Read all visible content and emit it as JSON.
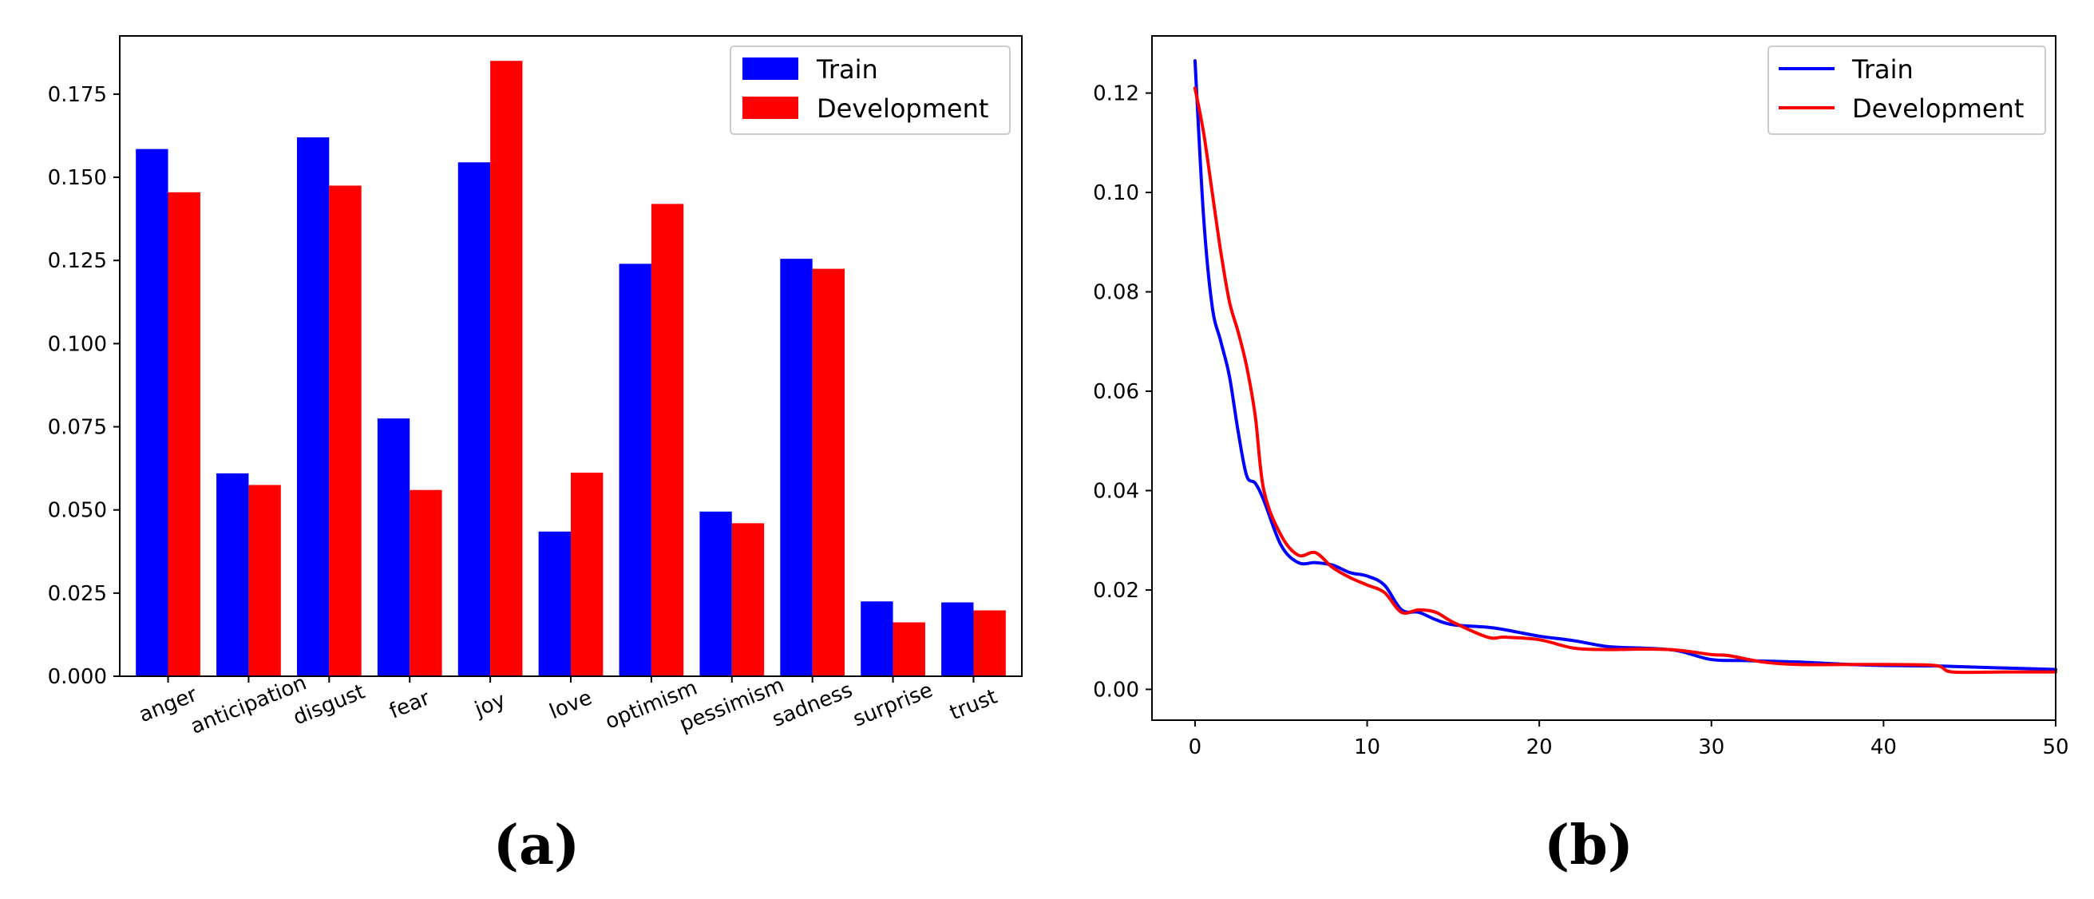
{
  "colors": {
    "train": "#0000ff",
    "development": "#ff0000"
  },
  "panels": {
    "a_label": "(a)",
    "b_label": "(b)"
  },
  "chart_data": [
    {
      "type": "bar",
      "categories": [
        "anger",
        "anticipation",
        "disgust",
        "fear",
        "joy",
        "love",
        "optimism",
        "pessimism",
        "sadness",
        "surprise",
        "trust"
      ],
      "series": [
        {
          "name": "Train",
          "values": [
            0.1585,
            0.061,
            0.162,
            0.0775,
            0.1545,
            0.0435,
            0.124,
            0.0495,
            0.1255,
            0.0225,
            0.0222
          ]
        },
        {
          "name": "Development",
          "values": [
            0.1455,
            0.0575,
            0.1475,
            0.056,
            0.185,
            0.0612,
            0.142,
            0.046,
            0.1225,
            0.0162,
            0.0198
          ]
        }
      ],
      "ylim": [
        0,
        0.1925
      ],
      "yticks": [
        "0.000",
        "0.025",
        "0.050",
        "0.075",
        "0.100",
        "0.125",
        "0.150",
        "0.175"
      ],
      "legend": "top-right",
      "grid": false
    },
    {
      "type": "line",
      "series": [
        {
          "name": "Train",
          "x": [
            0,
            0.5,
            1,
            1.5,
            2,
            2.5,
            3,
            3.5,
            4,
            5,
            6,
            7,
            8,
            9,
            10,
            11,
            12,
            13,
            14,
            15,
            17,
            18,
            20,
            22,
            24,
            26,
            28,
            30,
            32,
            35,
            38,
            40,
            43,
            45,
            48,
            50
          ],
          "y": [
            0.1265,
            0.095,
            0.077,
            0.07,
            0.063,
            0.052,
            0.043,
            0.0415,
            0.038,
            0.029,
            0.0255,
            0.0255,
            0.025,
            0.0235,
            0.0228,
            0.021,
            0.016,
            0.0155,
            0.014,
            0.013,
            0.0125,
            0.012,
            0.0107,
            0.0098,
            0.0086,
            0.0083,
            0.0078,
            0.006,
            0.0058,
            0.0055,
            0.005,
            0.0048,
            0.0047,
            0.0045,
            0.0042,
            0.004
          ]
        },
        {
          "name": "Development",
          "x": [
            0,
            0.5,
            1,
            1.5,
            2,
            2.5,
            3,
            3.5,
            4,
            5,
            6,
            7,
            8,
            9,
            10,
            11,
            12,
            13,
            14,
            15,
            17,
            18,
            20,
            22,
            24,
            26,
            28,
            30,
            31,
            33,
            35,
            38,
            40,
            43,
            44,
            47,
            50
          ],
          "y": [
            0.121,
            0.112,
            0.1,
            0.088,
            0.078,
            0.072,
            0.065,
            0.055,
            0.04,
            0.031,
            0.027,
            0.0275,
            0.0245,
            0.0225,
            0.021,
            0.0195,
            0.0155,
            0.016,
            0.0155,
            0.0135,
            0.0105,
            0.0105,
            0.01,
            0.0083,
            0.008,
            0.0081,
            0.0079,
            0.007,
            0.0068,
            0.0055,
            0.005,
            0.005,
            0.005,
            0.0048,
            0.0035,
            0.0035,
            0.0035
          ]
        }
      ],
      "xlim": [
        -2.5,
        50
      ],
      "ylim": [
        -0.0062,
        0.1315
      ],
      "xticks": [
        "0",
        "10",
        "20",
        "30",
        "40",
        "50"
      ],
      "yticks": [
        "0.00",
        "0.02",
        "0.04",
        "0.06",
        "0.08",
        "0.10",
        "0.12"
      ],
      "legend": "top-right",
      "grid": false
    }
  ]
}
